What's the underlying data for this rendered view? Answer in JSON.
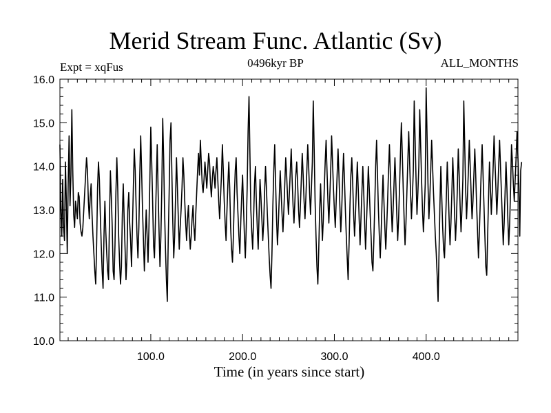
{
  "header": {
    "title": "Merid Stream Func. Atlantic (Sv)",
    "expt": "Expt = xqFus",
    "period": "0496kyr BP",
    "season": "ALL_MONTHS"
  },
  "chart_data": {
    "type": "line",
    "title": "Merid Stream Func. Atlantic (Sv)",
    "xlabel": "Time (in years since start)",
    "ylabel": "",
    "xlim": [
      1,
      500
    ],
    "ylim": [
      10.0,
      16.0
    ],
    "xticks": [
      100,
      200,
      300,
      400
    ],
    "xtick_labels": [
      "100.0",
      "200.0",
      "300.0",
      "400.0"
    ],
    "yticks": [
      10,
      11,
      12,
      13,
      14,
      15,
      16
    ],
    "ytick_labels": [
      "10.0",
      "11.0",
      "12.0",
      "13.0",
      "14.0",
      "15.0",
      "16.0"
    ],
    "series": [
      {
        "name": "xqFus",
        "x_start": 1,
        "x_step": 1,
        "values": [
          14.5,
          13.0,
          12.4,
          13.7,
          12.6,
          12.3,
          14.1,
          13.2,
          12.0,
          13.6,
          14.7,
          13.1,
          13.8,
          15.3,
          13.9,
          12.9,
          12.6,
          13.2,
          13.0,
          12.8,
          13.4,
          13.3,
          12.7,
          12.5,
          12.4,
          12.6,
          13.0,
          13.4,
          13.8,
          14.2,
          13.9,
          13.2,
          12.8,
          13.3,
          13.6,
          12.9,
          12.4,
          12.0,
          11.6,
          11.3,
          12.2,
          13.5,
          14.1,
          13.7,
          12.9,
          12.2,
          11.6,
          11.2,
          12.4,
          13.2,
          12.5,
          12.0,
          11.6,
          11.4,
          12.8,
          13.9,
          13.3,
          12.6,
          11.6,
          11.4,
          12.2,
          13.4,
          14.2,
          13.5,
          12.4,
          11.8,
          11.3,
          11.7,
          12.9,
          13.6,
          12.8,
          12.1,
          11.4,
          11.9,
          13.0,
          13.4,
          12.7,
          12.3,
          11.7,
          12.6,
          13.5,
          14.4,
          13.9,
          13.1,
          12.4,
          11.9,
          12.6,
          13.8,
          14.7,
          13.9,
          13.0,
          12.3,
          11.6,
          12.3,
          13.0,
          12.4,
          11.8,
          12.6,
          13.7,
          14.9,
          14.1,
          13.2,
          12.2,
          11.9,
          12.7,
          13.6,
          14.5,
          13.4,
          12.5,
          11.7,
          12.4,
          13.5,
          15.1,
          14.2,
          13.0,
          12.1,
          11.4,
          10.9,
          12.3,
          13.4,
          14.6,
          15.0,
          13.8,
          12.7,
          11.9,
          12.4,
          13.3,
          14.2,
          13.5,
          12.8,
          12.1,
          12.6,
          13.0,
          13.5,
          14.2,
          13.8,
          13.2,
          12.7,
          12.3,
          12.8,
          13.1,
          12.5,
          12.1,
          12.4,
          12.8,
          13.1,
          12.6,
          12.3,
          12.9,
          13.4,
          13.9,
          14.3,
          13.8,
          14.6,
          14.1,
          13.6,
          13.4,
          13.7,
          14.1,
          13.8,
          13.5,
          13.9,
          14.3,
          14.1,
          13.6,
          13.3,
          13.7,
          14.0,
          13.8,
          13.5,
          13.9,
          14.2,
          13.7,
          13.2,
          12.8,
          13.3,
          13.8,
          14.5,
          13.9,
          13.2,
          12.7,
          12.3,
          13.0,
          13.6,
          14.1,
          13.5,
          12.6,
          12.1,
          11.8,
          12.4,
          13.3,
          13.9,
          14.2,
          13.4,
          12.9,
          12.4,
          12.0,
          12.7,
          13.3,
          13.8,
          13.1,
          12.4,
          11.9,
          12.6,
          13.5,
          14.8,
          15.6,
          14.3,
          13.0,
          12.5,
          12.1,
          12.8,
          13.6,
          14.0,
          13.2,
          12.6,
          12.1,
          12.9,
          13.7,
          13.3,
          12.8,
          12.3,
          12.7,
          13.4,
          14.0,
          13.5,
          12.9,
          12.4,
          11.9,
          11.5,
          11.2,
          12.0,
          13.1,
          13.9,
          14.5,
          13.6,
          12.8,
          12.2,
          12.7,
          13.3,
          13.9,
          13.4,
          12.9,
          12.5,
          13.0,
          13.6,
          14.2,
          13.8,
          13.3,
          12.9,
          13.4,
          13.9,
          14.4,
          13.7,
          13.1,
          12.7,
          13.2,
          13.8,
          14.1,
          13.6,
          13.0,
          12.6,
          13.1,
          13.7,
          14.3,
          13.8,
          13.2,
          12.8,
          13.3,
          13.9,
          14.5,
          14.0,
          13.4,
          12.9,
          13.5,
          14.1,
          15.5,
          14.4,
          13.2,
          12.4,
          11.7,
          11.3,
          12.1,
          13.0,
          13.6,
          12.9,
          12.3,
          12.8,
          13.5,
          14.1,
          14.6,
          13.9,
          13.2,
          12.7,
          13.3,
          13.9,
          14.7,
          14.1,
          13.5,
          13.0,
          12.6,
          13.2,
          13.8,
          14.4,
          13.8,
          13.1,
          12.5,
          13.0,
          13.7,
          14.3,
          13.7,
          13.0,
          12.4,
          11.9,
          11.4,
          12.2,
          13.1,
          13.8,
          14.2,
          13.6,
          12.9,
          12.4,
          12.9,
          13.5,
          14.1,
          13.5,
          12.8,
          12.2,
          12.8,
          13.4,
          14.0,
          13.4,
          12.7,
          12.1,
          12.7,
          13.3,
          14.0,
          13.5,
          12.9,
          12.4,
          11.8,
          11.6,
          12.3,
          13.1,
          14.0,
          14.6,
          13.8,
          13.0,
          12.4,
          11.9,
          12.5,
          13.2,
          13.8,
          13.2,
          12.6,
          12.1,
          12.6,
          13.2,
          13.9,
          14.5,
          13.8,
          13.1,
          12.5,
          13.0,
          13.6,
          14.2,
          13.6,
          12.9,
          12.3,
          12.8,
          13.5,
          14.3,
          15.0,
          14.3,
          13.5,
          12.8,
          12.2,
          12.7,
          13.4,
          14.1,
          14.8,
          14.1,
          13.4,
          12.8,
          13.3,
          13.9,
          15.5,
          14.6,
          13.7,
          12.9,
          13.4,
          14.0,
          15.3,
          14.5,
          13.7,
          13.0,
          12.5,
          13.0,
          13.6,
          15.8,
          14.7,
          13.6,
          12.8,
          13.3,
          13.9,
          14.6,
          14.0,
          13.4,
          12.9,
          12.4,
          12.0,
          11.5,
          10.9,
          12.0,
          13.1,
          14.0,
          13.3,
          12.6,
          12.1,
          11.9,
          12.6,
          13.3,
          14.1,
          13.5,
          12.8,
          12.2,
          12.7,
          13.4,
          14.2,
          13.6,
          12.9,
          12.3,
          12.8,
          13.5,
          14.4,
          13.8,
          13.1,
          12.5,
          13.0,
          13.7,
          15.5,
          14.5,
          13.5,
          12.8,
          13.3,
          13.9,
          14.6,
          14.0,
          13.4,
          12.8,
          13.2,
          13.8,
          14.4,
          13.8,
          13.1,
          12.5,
          11.9,
          12.5,
          13.2,
          13.9,
          14.5,
          13.8,
          13.1,
          12.4,
          11.7,
          11.5,
          12.4,
          13.3,
          14.1,
          13.5,
          12.9,
          13.4,
          14.0,
          14.7,
          14.1,
          13.5,
          12.9,
          13.4,
          14.0,
          14.6,
          14.0,
          13.4,
          12.8,
          12.2,
          12.7,
          13.4,
          14.1,
          13.5,
          12.8,
          12.2,
          12.7,
          13.5,
          14.5,
          14.1,
          13.6,
          13.2,
          13.7,
          14.2,
          14.8,
          14.2,
          13.6,
          12.4,
          13.9,
          14.1
        ]
      }
    ]
  }
}
